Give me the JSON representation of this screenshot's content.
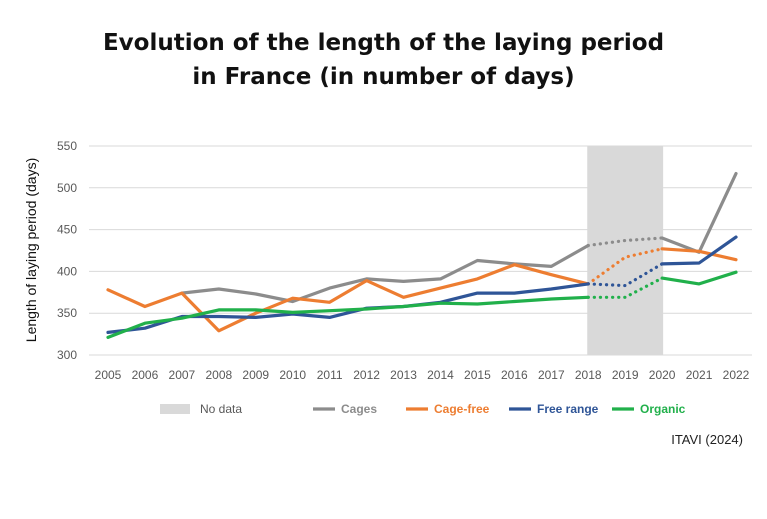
{
  "title_lines": [
    "Evolution of the length of the laying period",
    "in France (in number of days)"
  ],
  "source": "ITAVI (2024)",
  "chart_data": {
    "type": "line",
    "title": "Evolution of the length of the laying period in France (in number of days)",
    "xlabel": "",
    "ylabel": "Length of laying period (days)",
    "categories": [
      "2005",
      "2006",
      "2007",
      "2008",
      "2009",
      "2010",
      "2011",
      "2012",
      "2013",
      "2014",
      "2015",
      "2016",
      "2017",
      "2018",
      "2019",
      "2020",
      "2021",
      "2022"
    ],
    "ylim": [
      300,
      550
    ],
    "yticks": [
      300,
      350,
      400,
      450,
      500,
      550
    ],
    "grid": true,
    "legend_position": "bottom",
    "no_data_range": [
      "2018",
      "2020"
    ],
    "no_data_label": "No data",
    "series": [
      {
        "name": "Cages",
        "color": "#8c8c8c",
        "values": [
          null,
          null,
          374,
          379,
          373,
          364,
          380,
          391,
          388,
          391,
          413,
          409,
          406,
          431,
          437,
          440,
          423,
          517
        ]
      },
      {
        "name": "Cage-free",
        "color": "#ed7d31",
        "values": [
          378,
          358,
          374,
          329,
          350,
          368,
          363,
          389,
          369,
          380,
          391,
          408,
          396,
          385,
          417,
          427,
          424,
          414
        ]
      },
      {
        "name": "Free range",
        "color": "#2f5597",
        "values": [
          327,
          332,
          346,
          346,
          345,
          349,
          345,
          356,
          358,
          363,
          374,
          374,
          379,
          385,
          383,
          409,
          410,
          441
        ]
      },
      {
        "name": "Organic",
        "color": "#21b04b",
        "values": [
          321,
          338,
          344,
          354,
          354,
          351,
          353,
          355,
          358,
          362,
          361,
          364,
          367,
          369,
          369,
          392,
          385,
          399
        ]
      }
    ]
  }
}
